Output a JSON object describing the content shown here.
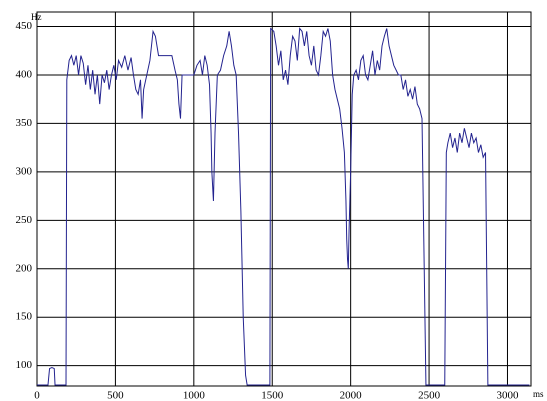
{
  "chart_data": {
    "type": "line",
    "x_label": "ms",
    "y_label": "Hz",
    "x": [
      0,
      70,
      80,
      95,
      110,
      115,
      185,
      190,
      205,
      220,
      235,
      250,
      265,
      280,
      295,
      310,
      325,
      340,
      355,
      370,
      385,
      400,
      415,
      430,
      445,
      460,
      475,
      490,
      505,
      520,
      540,
      560,
      580,
      600,
      615,
      630,
      645,
      660,
      670,
      680,
      700,
      720,
      740,
      755,
      765,
      775,
      800,
      830,
      860,
      880,
      895,
      905,
      915,
      925,
      950,
      980,
      1000,
      1020,
      1040,
      1055,
      1070,
      1085,
      1100,
      1110,
      1115,
      1125,
      1135,
      1150,
      1170,
      1190,
      1210,
      1225,
      1240,
      1255,
      1270,
      1285,
      1300,
      1315,
      1330,
      1340,
      1400,
      1470,
      1485,
      1490,
      1510,
      1525,
      1540,
      1555,
      1570,
      1585,
      1600,
      1615,
      1630,
      1645,
      1660,
      1675,
      1690,
      1705,
      1720,
      1735,
      1750,
      1765,
      1780,
      1795,
      1810,
      1825,
      1840,
      1855,
      1870,
      1885,
      1900,
      1915,
      1930,
      1945,
      1960,
      1970,
      1975,
      1980,
      1985,
      1990,
      2000,
      2010,
      2020,
      2035,
      2050,
      2065,
      2080,
      2095,
      2110,
      2125,
      2140,
      2155,
      2170,
      2185,
      2200,
      2215,
      2230,
      2245,
      2260,
      2275,
      2290,
      2305,
      2320,
      2335,
      2350,
      2365,
      2380,
      2395,
      2410,
      2425,
      2440,
      2455,
      2480,
      2500,
      2600,
      2610,
      2620,
      2635,
      2650,
      2665,
      2680,
      2695,
      2710,
      2725,
      2740,
      2755,
      2770,
      2785,
      2800,
      2815,
      2830,
      2845,
      2860,
      2875,
      2950,
      3050,
      3140
    ],
    "series": [
      {
        "color": "#23238f",
        "values": [
          80,
          80,
          97,
          98,
          97,
          80,
          80,
          395,
          415,
          420,
          410,
          420,
          400,
          420,
          412,
          390,
          410,
          385,
          405,
          380,
          400,
          370,
          400,
          392,
          405,
          385,
          400,
          410,
          395,
          415,
          408,
          420,
          405,
          418,
          400,
          385,
          380,
          395,
          355,
          385,
          400,
          415,
          445,
          440,
          430,
          420,
          420,
          420,
          420,
          405,
          395,
          370,
          355,
          400,
          400,
          400,
          400,
          410,
          415,
          400,
          420,
          410,
          390,
          340,
          300,
          270,
          340,
          400,
          405,
          420,
          430,
          445,
          430,
          410,
          400,
          340,
          260,
          150,
          90,
          80,
          80,
          80,
          80,
          448,
          445,
          430,
          410,
          425,
          395,
          405,
          390,
          420,
          440,
          435,
          415,
          448,
          445,
          430,
          445,
          420,
          410,
          430,
          405,
          400,
          420,
          445,
          440,
          448,
          435,
          400,
          385,
          375,
          365,
          345,
          320,
          270,
          230,
          210,
          200,
          240,
          300,
          380,
          400,
          405,
          395,
          415,
          420,
          400,
          395,
          410,
          425,
          400,
          415,
          405,
          430,
          440,
          448,
          430,
          420,
          410,
          405,
          400,
          400,
          385,
          395,
          378,
          385,
          375,
          388,
          370,
          365,
          355,
          80,
          80,
          80,
          320,
          330,
          340,
          325,
          335,
          320,
          340,
          330,
          345,
          335,
          325,
          340,
          330,
          335,
          320,
          328,
          315,
          320,
          80,
          80,
          80,
          80
        ]
      }
    ],
    "xlim": [
      0,
      3150
    ],
    "ylim": [
      79,
      465
    ],
    "xticks": [
      0,
      500,
      1000,
      1500,
      2000,
      2500,
      3000
    ],
    "yticks": [
      100,
      150,
      200,
      250,
      300,
      350,
      400,
      450
    ],
    "grid": true
  }
}
